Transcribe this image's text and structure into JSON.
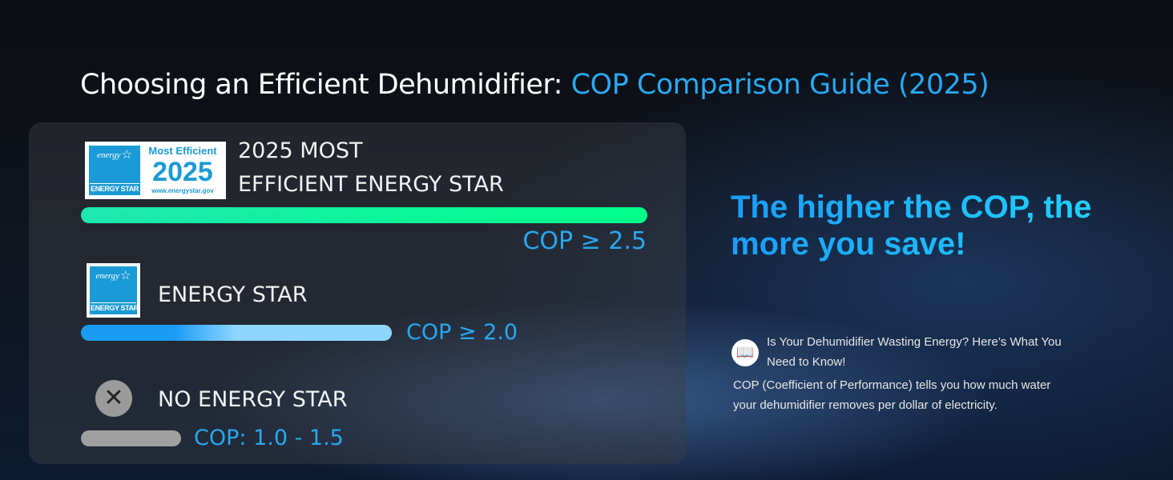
{
  "title": {
    "main": "Choosing an Efficient Dehumidifier: ",
    "highlight": "COP Comparison Guide (2025)"
  },
  "tiers": [
    {
      "label_line1": "2025 MOST",
      "label_line2": "EFFICIENT ENERGY STAR",
      "cop": "COP ≥ 2.5",
      "color": "#00f5a8",
      "badge": {
        "top": "Most Efficient",
        "year": "2025",
        "url": "www.energystar.gov",
        "logo_script": "energy",
        "logo_label": "ENERGY STAR"
      }
    },
    {
      "label": "ENERGY STAR",
      "cop": "COP ≥ 2.0",
      "color": "#2aa8f5",
      "badge": {
        "logo_script": "energy",
        "logo_label": "ENERGY STAR"
      }
    },
    {
      "label": "NO ENERGY STAR",
      "cop": "COP: 1.0 - 1.5",
      "color": "#a0a0a0",
      "icon": "x-circle-icon"
    }
  ],
  "headline": {
    "line1": "The higher the COP, the",
    "line2": "more you save!"
  },
  "note": {
    "icon": "manual-reading-icon",
    "question_line1": "Is Your Dehumidifier Wasting Energy? Here’s What You",
    "question_line2": "Need to Know!",
    "body_line1": "COP (Coefficient of Performance) tells you how much water",
    "body_line2": "your dehumidifier removes per dollar of electricity."
  }
}
